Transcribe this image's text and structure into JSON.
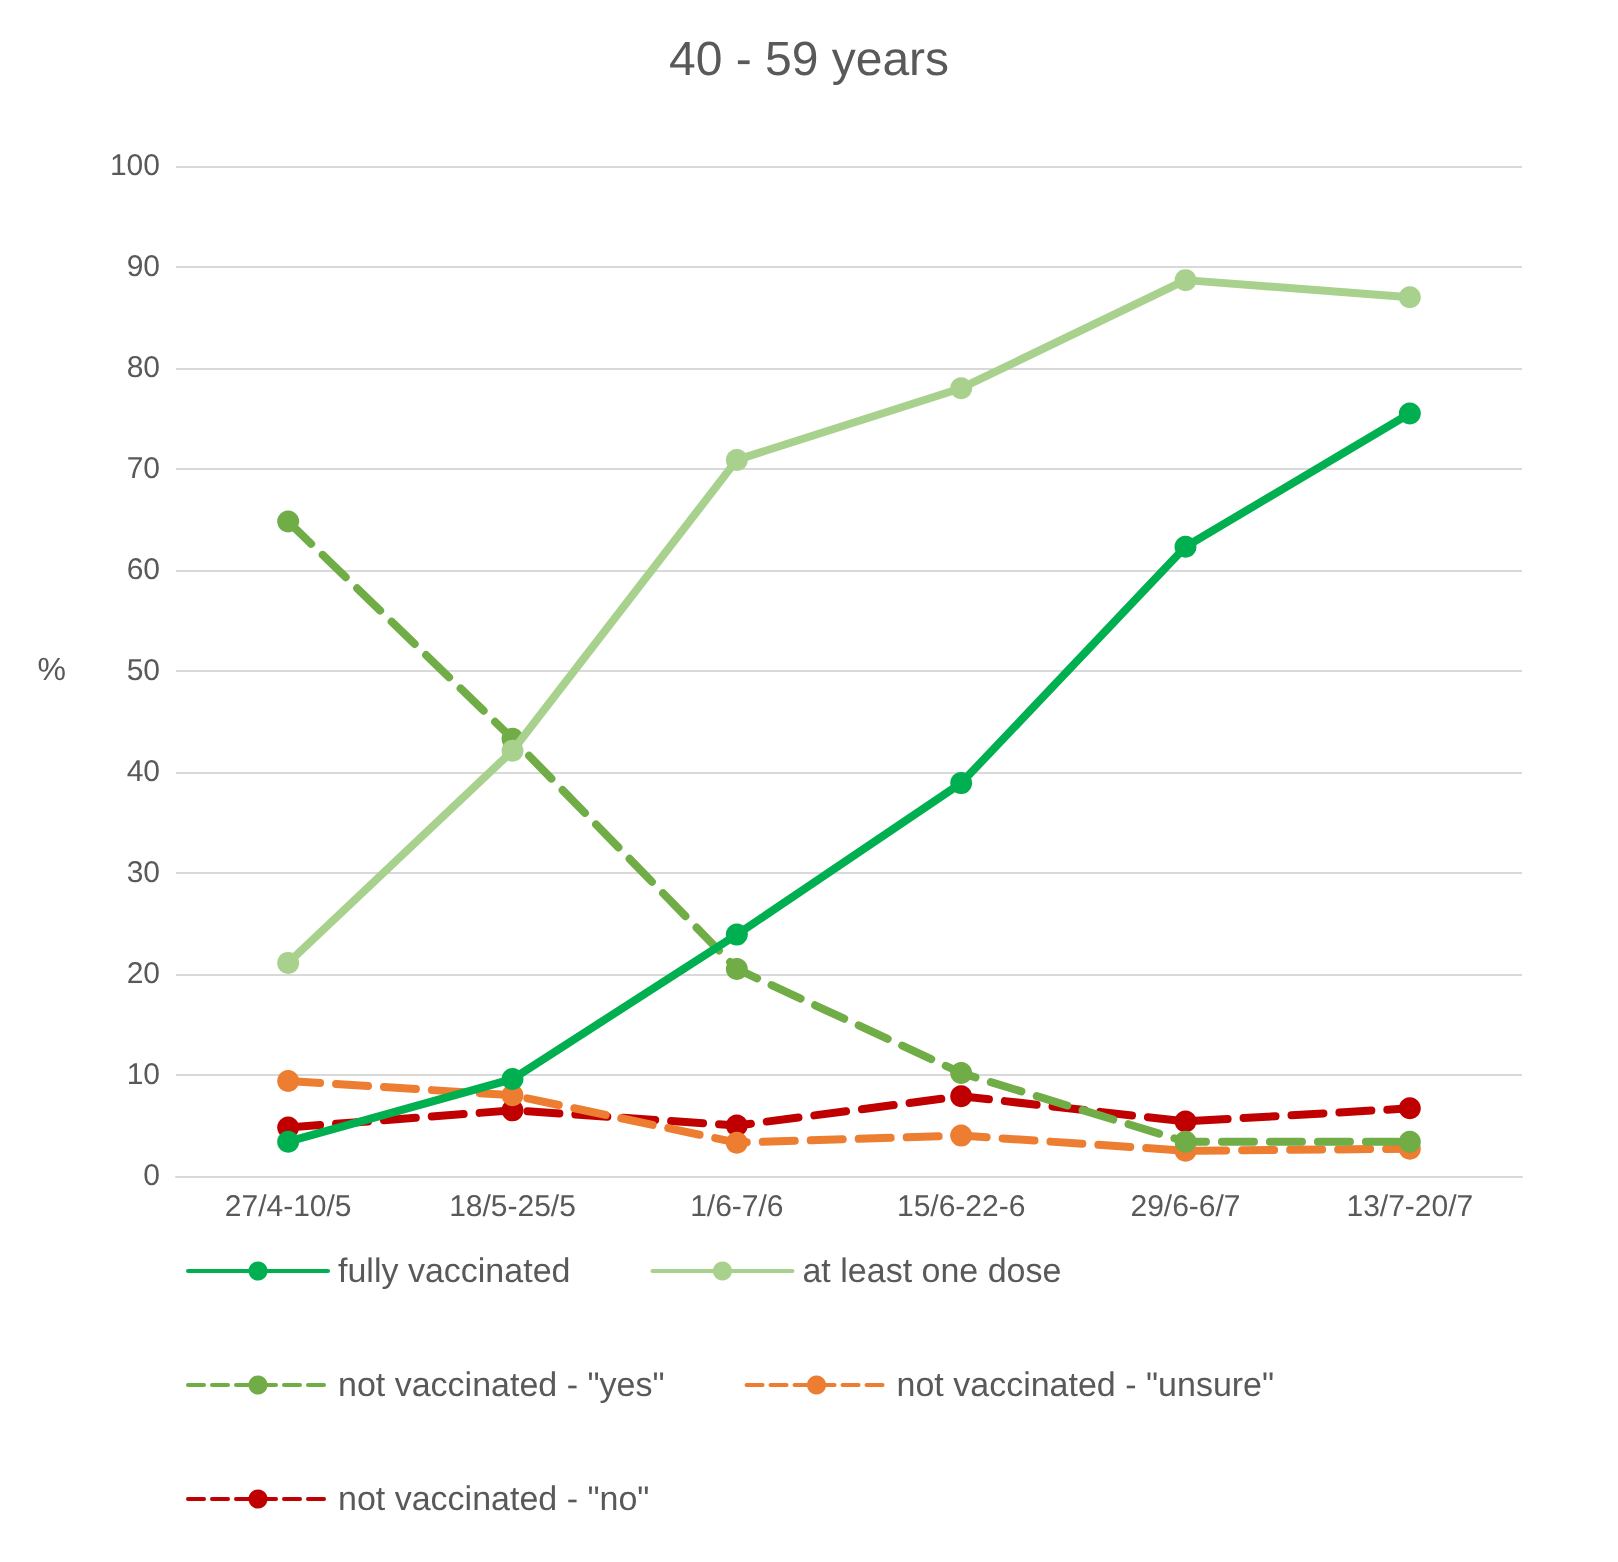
{
  "chart_data": {
    "type": "line",
    "title": "40 - 59 years",
    "ylabel": "%",
    "categories": [
      "27/4-10/5",
      "18/5-25/5",
      "1/6-7/6",
      "15/6-22-6",
      "29/6-6/7",
      "13/7-20/7"
    ],
    "series": [
      {
        "name": "fully vaccinated",
        "color": "#00b050",
        "line_style": "solid",
        "values": [
          3.4,
          9.6,
          23.9,
          38.9,
          62.3,
          75.5
        ]
      },
      {
        "name": "at least one dose",
        "color": "#a9d18e",
        "line_style": "solid",
        "values": [
          21.1,
          42.1,
          70.9,
          78,
          88.7,
          87
        ]
      },
      {
        "name": "not vaccinated - \"yes\"",
        "color": "#70ad47",
        "line_style": "dashed",
        "values": [
          64.8,
          43.3,
          20.5,
          10.2,
          3.4,
          3.4
        ]
      },
      {
        "name": "not vaccinated - \"unsure\"",
        "color": "#ed7d31",
        "line_style": "dashed",
        "values": [
          9.4,
          8,
          3.3,
          4,
          2.5,
          2.7
        ]
      },
      {
        "name": "not vaccinated - \"no\"",
        "color": "#c00000",
        "line_style": "dashed",
        "values": [
          4.8,
          6.5,
          5,
          7.9,
          5.4,
          6.7
        ]
      }
    ],
    "ylim": [
      0,
      100
    ],
    "yticks": [
      0,
      10,
      20,
      30,
      40,
      50,
      60,
      70,
      80,
      90,
      100
    ],
    "grid": "y",
    "legend": "bottom",
    "marker": "circle"
  }
}
